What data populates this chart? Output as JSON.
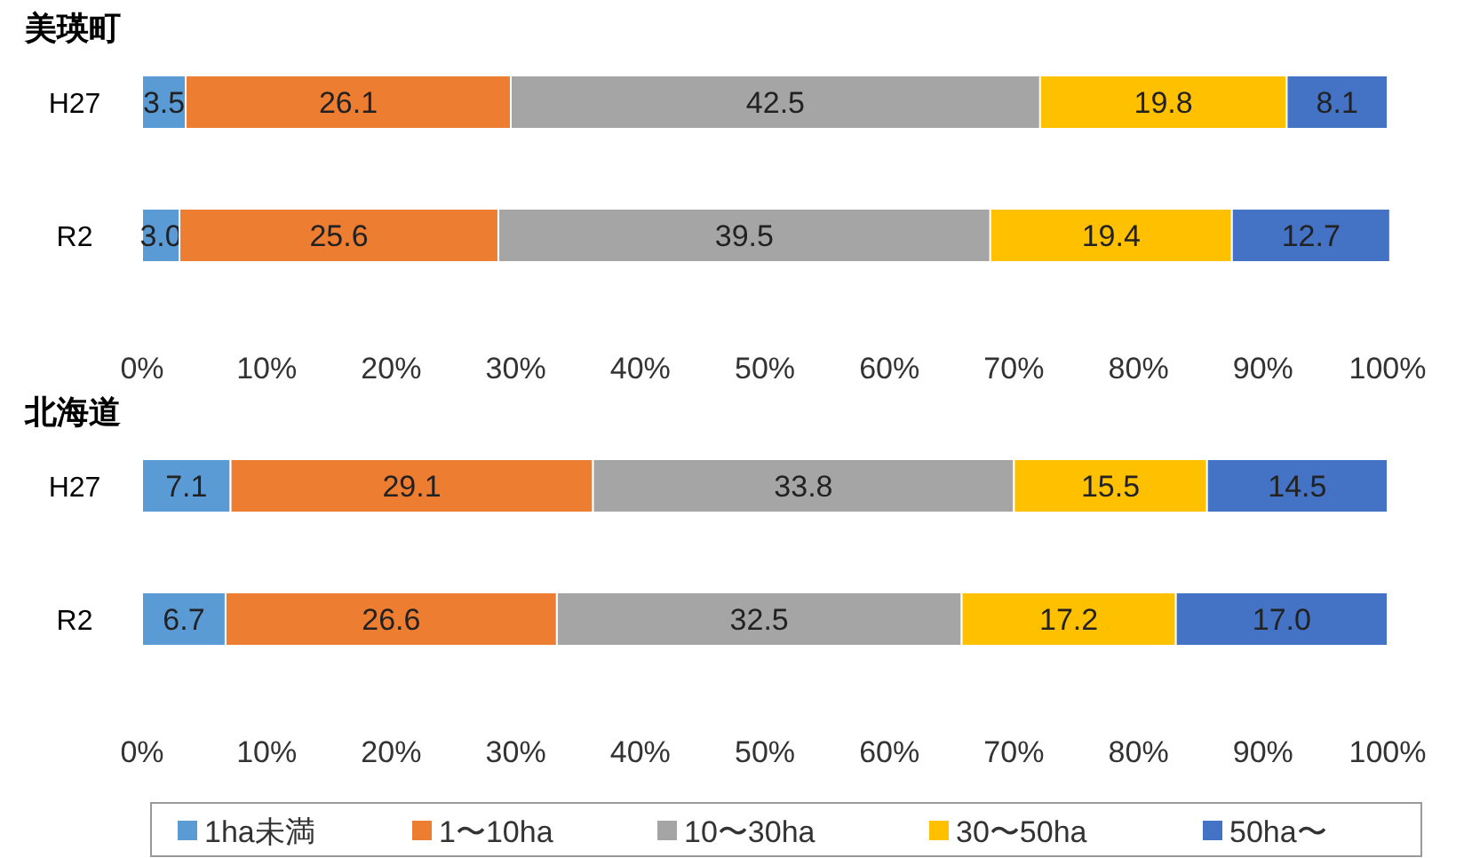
{
  "chart_data": [
    {
      "type": "bar",
      "orientation": "horizontal",
      "stacked": true,
      "title": "美瑛町",
      "categories": [
        "H27",
        "R2"
      ],
      "xlim": [
        0,
        100
      ],
      "xticks": [
        {
          "value": 0,
          "label": "0%"
        },
        {
          "value": 10,
          "label": "10%"
        },
        {
          "value": 20,
          "label": "20%"
        },
        {
          "value": 30,
          "label": "30%"
        },
        {
          "value": 40,
          "label": "40%"
        },
        {
          "value": 50,
          "label": "50%"
        },
        {
          "value": 60,
          "label": "60%"
        },
        {
          "value": 70,
          "label": "70%"
        },
        {
          "value": 80,
          "label": "80%"
        },
        {
          "value": 90,
          "label": "90%"
        },
        {
          "value": 100,
          "label": "100%"
        }
      ],
      "series": [
        {
          "color": "#5b9bd5",
          "values": [
            3.5,
            3.0
          ],
          "value_labels": [
            "3.5",
            "3.0"
          ]
        },
        {
          "color": "#ed7d31",
          "values": [
            26.1,
            25.6
          ],
          "value_labels": [
            "26.1",
            "25.6"
          ]
        },
        {
          "color": "#a5a5a5",
          "values": [
            42.5,
            39.5
          ],
          "value_labels": [
            "42.5",
            "39.5"
          ]
        },
        {
          "color": "#ffc000",
          "values": [
            19.8,
            19.4
          ],
          "value_labels": [
            "19.8",
            "19.4"
          ]
        },
        {
          "color": "#4472c4",
          "values": [
            8.1,
            12.7
          ],
          "value_labels": [
            "8.1",
            "12.7"
          ]
        }
      ]
    },
    {
      "type": "bar",
      "orientation": "horizontal",
      "stacked": true,
      "title": "北海道",
      "categories": [
        "H27",
        "R2"
      ],
      "legend": "bottom",
      "xlim": [
        0,
        100
      ],
      "xticks": [
        {
          "value": 0,
          "label": "0%"
        },
        {
          "value": 10,
          "label": "10%"
        },
        {
          "value": 20,
          "label": "20%"
        },
        {
          "value": 30,
          "label": "30%"
        },
        {
          "value": 40,
          "label": "40%"
        },
        {
          "value": 50,
          "label": "50%"
        },
        {
          "value": 60,
          "label": "60%"
        },
        {
          "value": 70,
          "label": "70%"
        },
        {
          "value": 80,
          "label": "80%"
        },
        {
          "value": 90,
          "label": "90%"
        },
        {
          "value": 100,
          "label": "100%"
        }
      ],
      "series": [
        {
          "name": "1ha未満",
          "color": "#5b9bd5",
          "values": [
            7.1,
            6.7
          ],
          "value_labels": [
            "7.1",
            "6.7"
          ]
        },
        {
          "name": "1〜10ha",
          "color": "#ed7d31",
          "values": [
            29.1,
            26.6
          ],
          "value_labels": [
            "29.1",
            "26.6"
          ]
        },
        {
          "name": "10〜30ha",
          "color": "#a5a5a5",
          "values": [
            33.8,
            32.5
          ],
          "value_labels": [
            "33.8",
            "32.5"
          ]
        },
        {
          "name": "30〜50ha",
          "color": "#ffc000",
          "values": [
            15.5,
            17.2
          ],
          "value_labels": [
            "15.5",
            "17.2"
          ]
        },
        {
          "name": "50ha〜",
          "color": "#4472c4",
          "values": [
            14.5,
            17.0
          ],
          "value_labels": [
            "14.5",
            "17.0"
          ]
        }
      ]
    }
  ]
}
